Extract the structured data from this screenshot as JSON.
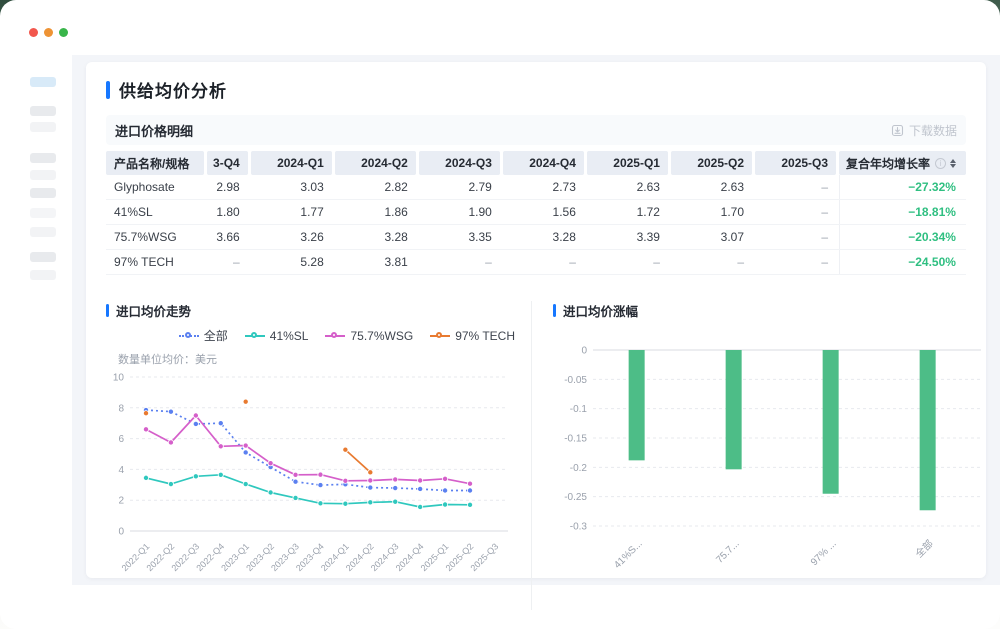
{
  "window": {
    "traffic_lights": [
      "#f2574d",
      "#ee9334",
      "#39b54a"
    ]
  },
  "page": {
    "title": "供给均价分析",
    "accent_color": "#1677ff"
  },
  "table_section": {
    "title": "进口价格明细",
    "download_label": "下载数据"
  },
  "table": {
    "columns": [
      "产品名称/规格",
      "3-Q4",
      "2024-Q1",
      "2024-Q2",
      "2024-Q3",
      "2024-Q4",
      "2025-Q1",
      "2025-Q2",
      "2025-Q3",
      "复合年均增长率"
    ],
    "rows": [
      {
        "name": "Glyphosate",
        "values": [
          "2.98",
          "3.03",
          "2.82",
          "2.79",
          "2.73",
          "2.63",
          "2.63",
          "–"
        ],
        "cagr": "−27.32%"
      },
      {
        "name": "41%SL",
        "values": [
          "1.80",
          "1.77",
          "1.86",
          "1.90",
          "1.56",
          "1.72",
          "1.70",
          "–"
        ],
        "cagr": "−18.81%"
      },
      {
        "name": "75.7%WSG",
        "values": [
          "3.66",
          "3.26",
          "3.28",
          "3.35",
          "3.28",
          "3.39",
          "3.07",
          "–"
        ],
        "cagr": "−20.34%"
      },
      {
        "name": "97% TECH",
        "values": [
          "–",
          "5.28",
          "3.81",
          "–",
          "–",
          "–",
          "–",
          "–"
        ],
        "cagr": "−24.50%"
      }
    ],
    "cagr_color": "#2fbf81"
  },
  "charts": {
    "trend": {
      "title": "进口均价走势",
      "subtitle": "数量单位均价：美元"
    },
    "change": {
      "title": "进口均价涨幅"
    }
  },
  "chart_data": [
    {
      "type": "line",
      "title": "进口均价走势",
      "unit_note": "数量单位均价：美元",
      "categories": [
        "2022-Q1",
        "2022-Q2",
        "2022-Q3",
        "2022-Q4",
        "2023-Q1",
        "2023-Q2",
        "2023-Q3",
        "2023-Q4",
        "2024-Q1",
        "2024-Q2",
        "2024-Q3",
        "2024-Q4",
        "2025-Q1",
        "2025-Q2",
        "2025-Q3"
      ],
      "series": [
        {
          "name": "全部",
          "color": "#5b80f0",
          "dashed": true,
          "values": [
            7.85,
            7.75,
            6.95,
            7.0,
            5.1,
            4.15,
            3.2,
            2.98,
            3.03,
            2.82,
            2.79,
            2.73,
            2.63,
            2.63,
            null
          ]
        },
        {
          "name": "41%SL",
          "color": "#2fc8be",
          "dashed": false,
          "values": [
            3.45,
            3.05,
            3.55,
            3.65,
            3.05,
            2.5,
            2.15,
            1.8,
            1.77,
            1.86,
            1.9,
            1.56,
            1.72,
            1.7,
            null
          ]
        },
        {
          "name": "75.7%WSG",
          "color": "#d55fca",
          "dashed": false,
          "values": [
            6.6,
            5.75,
            7.5,
            5.5,
            5.55,
            4.4,
            3.65,
            3.66,
            3.26,
            3.28,
            3.35,
            3.28,
            3.39,
            3.07,
            null
          ]
        },
        {
          "name": "97% TECH",
          "color": "#e87a30",
          "dashed": false,
          "values": [
            7.65,
            null,
            null,
            null,
            8.4,
            null,
            null,
            null,
            5.28,
            3.81,
            null,
            null,
            null,
            null,
            null
          ]
        }
      ],
      "ylim": [
        0,
        10
      ],
      "yticks": [
        "0",
        "2",
        "4",
        "6",
        "8",
        "10"
      ],
      "grid": "dashed",
      "legend_position": "top-right"
    },
    {
      "type": "bar",
      "title": "进口均价涨幅",
      "categories": [
        "41%S...",
        "75.7...",
        "97% ...",
        "全部"
      ],
      "values": [
        -0.1881,
        -0.2034,
        -0.245,
        -0.2732
      ],
      "bar_color": "#4dbd87",
      "ylim": [
        -0.3,
        0
      ],
      "yticks": [
        "0",
        "-0.05",
        "-0.1",
        "-0.15",
        "-0.2",
        "-0.25",
        "-0.3"
      ],
      "grid": "dashed"
    }
  ]
}
